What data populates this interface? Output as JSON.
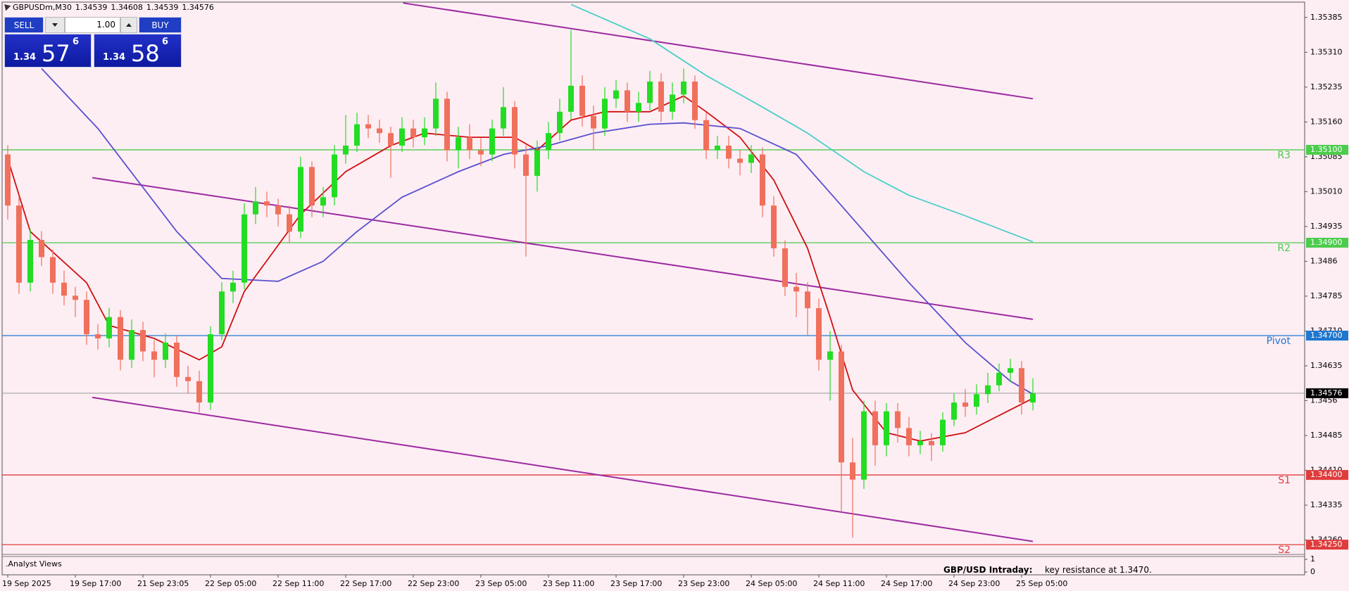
{
  "chart_data": {
    "type": "candlestick",
    "title": "GBPUSDm,M30",
    "ohlc_header": [
      1.34539,
      1.34608,
      1.34539,
      1.34576
    ],
    "up_color": "#22dd22",
    "down_color": "#f0705c",
    "categories": [
      "19 Sep 2025",
      null,
      null,
      null,
      null,
      null,
      "19 Sep 17:00",
      null,
      null,
      null,
      null,
      null,
      "21 Sep 23:05",
      null,
      null,
      null,
      null,
      null,
      "22 Sep 05:00",
      null,
      null,
      null,
      null,
      null,
      "22 Sep 11:00",
      null,
      null,
      null,
      null,
      null,
      "22 Sep 17:00",
      null,
      null,
      null,
      null,
      null,
      "22 Sep 23:00",
      null,
      null,
      null,
      null,
      null,
      "23 Sep 05:00",
      null,
      null,
      null,
      null,
      null,
      "23 Sep 11:00",
      null,
      null,
      null,
      null,
      null,
      "23 Sep 17:00",
      null,
      null,
      null,
      null,
      null,
      "23 Sep 23:00",
      null,
      null,
      null,
      null,
      null,
      "24 Sep 05:00",
      null,
      null,
      null,
      null,
      null,
      "24 Sep 11:00",
      null,
      null,
      null,
      null,
      null,
      "24 Sep 17:00",
      null,
      null,
      null,
      null,
      null,
      "24 Sep 23:00",
      null,
      null,
      null,
      null,
      null,
      "25 Sep 05:00",
      null
    ],
    "open": [
      1.3509,
      1.3498,
      1.34814,
      1.34906,
      1.34869,
      1.34814,
      1.34786,
      1.34777,
      1.34703,
      1.34694,
      1.3474,
      1.34648,
      1.34712,
      1.34666,
      1.34648,
      1.34685,
      1.34611,
      1.34602,
      1.34556,
      1.34703,
      1.34795,
      1.34814,
      1.34961,
      1.34989,
      1.3498,
      1.34961,
      1.34924,
      1.35063,
      1.3498,
      1.34998,
      1.3509,
      1.35109,
      1.35155,
      1.35146,
      1.35136,
      1.35109,
      1.35146,
      1.35127,
      1.35146,
      1.3521,
      1.35099,
      1.35127,
      1.35099,
      1.3509,
      1.35146,
      1.35192,
      1.3509,
      1.35044,
      1.35099,
      1.35136,
      1.35182,
      1.35238,
      1.35173,
      1.35146,
      1.3521,
      1.35228,
      1.35182,
      1.35201,
      1.35247,
      1.35182,
      1.35219,
      1.35247,
      1.35164,
      1.35099,
      1.35109,
      1.35081,
      1.35072,
      1.3509,
      1.3498,
      1.34888,
      1.34805,
      1.34795,
      1.34759,
      1.34648,
      1.34666,
      1.34427,
      1.3439,
      1.34537,
      1.34464,
      1.34537,
      1.34501,
      1.34464,
      1.34473,
      1.34464,
      1.34519,
      1.34556,
      1.34547,
      1.34574,
      1.34593,
      1.3462,
      1.3463,
      1.34556
    ],
    "high": [
      1.3511,
      1.35,
      1.3493,
      1.34925,
      1.34885,
      1.3484,
      1.34805,
      1.34795,
      1.34725,
      1.3476,
      1.34755,
      1.34735,
      1.3473,
      1.3469,
      1.34705,
      1.347,
      1.34635,
      1.34625,
      1.3472,
      1.34815,
      1.3484,
      1.34985,
      1.3502,
      1.3501,
      1.34995,
      1.3498,
      1.35085,
      1.35075,
      1.3502,
      1.3511,
      1.35175,
      1.3518,
      1.35175,
      1.35165,
      1.3515,
      1.3517,
      1.35165,
      1.3517,
      1.35245,
      1.35225,
      1.3515,
      1.35155,
      1.35125,
      1.35165,
      1.35235,
      1.35205,
      1.3511,
      1.3512,
      1.3516,
      1.3521,
      1.35358,
      1.3526,
      1.35195,
      1.35235,
      1.3525,
      1.35245,
      1.35225,
      1.3527,
      1.35265,
      1.35245,
      1.35275,
      1.3526,
      1.3518,
      1.3513,
      1.3513,
      1.351,
      1.3511,
      1.35105,
      1.35,
      1.34905,
      1.34835,
      1.34815,
      1.3478,
      1.3471,
      1.3468,
      1.3448,
      1.3456,
      1.3456,
      1.34555,
      1.34555,
      1.34525,
      1.34495,
      1.3449,
      1.34535,
      1.34575,
      1.34585,
      1.34595,
      1.3462,
      1.3464,
      1.3465,
      1.34645,
      1.34608
    ],
    "low": [
      1.3495,
      1.3479,
      1.34795,
      1.3485,
      1.3479,
      1.34765,
      1.3474,
      1.3468,
      1.3467,
      1.34675,
      1.34625,
      1.3463,
      1.34645,
      1.3461,
      1.3463,
      1.3459,
      1.34575,
      1.34535,
      1.3454,
      1.3469,
      1.3477,
      1.348,
      1.3494,
      1.34955,
      1.34935,
      1.349,
      1.3491,
      1.34955,
      1.34955,
      1.3498,
      1.3507,
      1.35095,
      1.35125,
      1.35115,
      1.3504,
      1.35095,
      1.35105,
      1.3511,
      1.3513,
      1.35075,
      1.3506,
      1.3508,
      1.35065,
      1.35075,
      1.3513,
      1.3506,
      1.3487,
      1.3501,
      1.3508,
      1.3512,
      1.35165,
      1.3515,
      1.351,
      1.3513,
      1.3519,
      1.3516,
      1.3516,
      1.35185,
      1.3516,
      1.35165,
      1.352,
      1.35145,
      1.3508,
      1.3508,
      1.3506,
      1.35045,
      1.3505,
      1.34955,
      1.3487,
      1.34785,
      1.3474,
      1.347,
      1.34625,
      1.3456,
      1.3432,
      1.34265,
      1.3437,
      1.3442,
      1.3444,
      1.3447,
      1.3444,
      1.34445,
      1.3443,
      1.3445,
      1.34505,
      1.34525,
      1.3453,
      1.34555,
      1.3458,
      1.346,
      1.3453,
      1.34539
    ],
    "close": [
      1.3498,
      1.34814,
      1.34906,
      1.34869,
      1.34814,
      1.34786,
      1.34777,
      1.34703,
      1.34694,
      1.3474,
      1.34648,
      1.34712,
      1.34666,
      1.34648,
      1.34685,
      1.34611,
      1.34602,
      1.34556,
      1.34703,
      1.34795,
      1.34814,
      1.34961,
      1.34989,
      1.3498,
      1.34961,
      1.34924,
      1.35063,
      1.3498,
      1.34998,
      1.3509,
      1.35109,
      1.35155,
      1.35146,
      1.35136,
      1.35109,
      1.35146,
      1.35127,
      1.35146,
      1.3521,
      1.35099,
      1.35127,
      1.35099,
      1.3509,
      1.35146,
      1.35192,
      1.3509,
      1.35044,
      1.35099,
      1.35136,
      1.35182,
      1.35238,
      1.35173,
      1.35146,
      1.3521,
      1.35228,
      1.35182,
      1.35201,
      1.35247,
      1.35182,
      1.35219,
      1.35247,
      1.35164,
      1.35099,
      1.35109,
      1.35081,
      1.35072,
      1.3509,
      1.3498,
      1.34888,
      1.34805,
      1.34795,
      1.34759,
      1.34648,
      1.34666,
      1.34427,
      1.3439,
      1.34537,
      1.34464,
      1.34537,
      1.34501,
      1.34464,
      1.34473,
      1.34464,
      1.34519,
      1.34556,
      1.34547,
      1.34574,
      1.34593,
      1.3462,
      1.3463,
      1.34556,
      1.34576
    ],
    "series": [
      {
        "color": "#d01010",
        "x": [
          0,
          2,
          7,
          9,
          13,
          17,
          19,
          21,
          26,
          30,
          34,
          37,
          41,
          45,
          47,
          50,
          53,
          57,
          60,
          62,
          65,
          68,
          71,
          73,
          75,
          78,
          81,
          85,
          88,
          91
        ],
        "values": [
          1.35081,
          1.34924,
          1.34814,
          1.34722,
          1.34694,
          1.34648,
          1.34676,
          1.34795,
          1.34961,
          1.35053,
          1.35109,
          1.35136,
          1.35127,
          1.35127,
          1.35099,
          1.35164,
          1.35182,
          1.35182,
          1.35216,
          1.35182,
          1.35127,
          1.35035,
          1.34888,
          1.3474,
          1.34583,
          1.34491,
          1.34473,
          1.34491,
          1.34528,
          1.34565
        ]
      },
      {
        "color": "#5a4fcf",
        "x": [
          3,
          8,
          15,
          19,
          24,
          28,
          31,
          35,
          40,
          44,
          48,
          52,
          57,
          60,
          65,
          70,
          74,
          80,
          85,
          89,
          91
        ],
        "values": [
          1.35275,
          1.35146,
          1.34924,
          1.34823,
          1.34817,
          1.3486,
          1.34924,
          1.34998,
          1.35053,
          1.3509,
          1.35109,
          1.35136,
          1.35155,
          1.35158,
          1.35146,
          1.3509,
          1.3498,
          1.34814,
          1.34685,
          1.34602,
          1.34574
        ]
      },
      {
        "color": "#49cfc8",
        "x": [
          50,
          57,
          62,
          67,
          71,
          76,
          80,
          85,
          91
        ],
        "values": [
          1.35413,
          1.35339,
          1.3526,
          1.35192,
          1.35136,
          1.35053,
          1.35002,
          1.34958,
          1.34902
        ]
      }
    ],
    "trendlines": [
      {
        "color": "#9c2aa0",
        "x": [
          35.1,
          91
        ],
        "values": [
          1.35416,
          1.3521
        ]
      },
      {
        "color": "#9c2aa0",
        "x": [
          7.5,
          91
        ],
        "values": [
          1.3504,
          1.34735
        ]
      },
      {
        "color": "#9c2aa0",
        "x": [
          7.5,
          91
        ],
        "values": [
          1.34567,
          1.34257
        ]
      }
    ],
    "levels": [
      {
        "name": "R3",
        "color": "#4ccc4c",
        "price": {
          "value": 1.351,
          "label": "1.35100"
        }
      },
      {
        "name": "R2",
        "color": "#4ccc4c",
        "price": {
          "value": 1.349,
          "label": "1.34900"
        }
      },
      {
        "name": "Pivot",
        "color": "#1f77d0",
        "price": {
          "value": 1.347,
          "label": "1.34700"
        }
      },
      {
        "name": "S1",
        "color": "#e03c3c",
        "price": {
          "value": 1.344,
          "label": "1.34400"
        }
      },
      {
        "name": "S2",
        "color": "#e03c3c",
        "price": {
          "value": 1.3425,
          "label": "1.34250"
        }
      }
    ],
    "last_price": 1.34576,
    "ylim": [
      1.34232,
      1.35418
    ],
    "yticks": [
      1.35385,
      {
        "value": 1.3531,
        "label": "1.35310"
      },
      1.35235,
      {
        "value": 1.3516,
        "label": "1.35160"
      },
      1.35085,
      {
        "value": 1.3501,
        "label": "1.35010"
      },
      1.34935,
      1.3486,
      1.34785,
      {
        "value": 1.3471,
        "label": "1.34710"
      },
      1.34635,
      1.3456,
      1.34485,
      {
        "value": 1.3441,
        "label": "1.34410"
      },
      1.34335,
      {
        "value": 1.3426,
        "label": "1.34260"
      }
    ],
    "indicator": {
      "name": ".Analyst Views",
      "ylim": [
        0,
        1
      ],
      "yticks": [
        0,
        1
      ]
    },
    "annotation": {
      "title": "GBP/USD Intraday:",
      "text": "key resistance at 1.3470."
    }
  },
  "trade_panel": {
    "sell": "SELL",
    "buy": "BUY",
    "volume": "1.00",
    "sell_price": {
      "base": "1.34",
      "pips": "57",
      "point": "6"
    },
    "buy_price": {
      "base": "1.34",
      "pips": "58",
      "point": "6"
    }
  }
}
